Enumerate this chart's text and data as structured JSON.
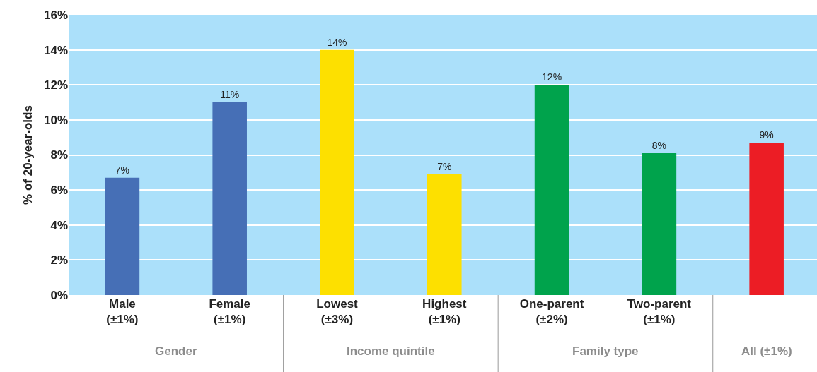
{
  "chart_data": {
    "type": "bar",
    "ylabel": "% of 20-year-olds",
    "categories": [
      "Male\n(±1%)",
      "Female\n(±1%)",
      "Lowest\n(±3%)",
      "Highest\n(±1%)",
      "One-parent\n(±2%)",
      "Two-parent\n(±1%)",
      null
    ],
    "values": [
      6.7,
      11.0,
      14.0,
      6.9,
      12.0,
      8.1,
      8.7
    ],
    "colors": [
      "#466fb6",
      "#466fb6",
      "#fde000",
      "#fde000",
      "#00a34c",
      "#00a34c",
      "#ec1d25"
    ],
    "value_labels": [
      "7%",
      "11%",
      "14%",
      "7%",
      "12%",
      "8%",
      "9%"
    ],
    "ylim": [
      0,
      16
    ],
    "yticks": [
      {
        "value": 0,
        "label": "0%"
      },
      {
        "value": 2,
        "label": "2%"
      },
      {
        "value": 4,
        "label": "4%"
      },
      {
        "value": 6,
        "label": "6%"
      },
      {
        "value": 8,
        "label": "8%"
      },
      {
        "value": 10,
        "label": "10%"
      },
      {
        "value": 12,
        "label": "12%"
      },
      {
        "value": 14,
        "label": "14%"
      },
      {
        "value": 16,
        "label": "16%"
      }
    ],
    "grid": "y",
    "annotations": [
      "Gender",
      "Income quintile",
      "Family type",
      "All (±1%)"
    ]
  }
}
